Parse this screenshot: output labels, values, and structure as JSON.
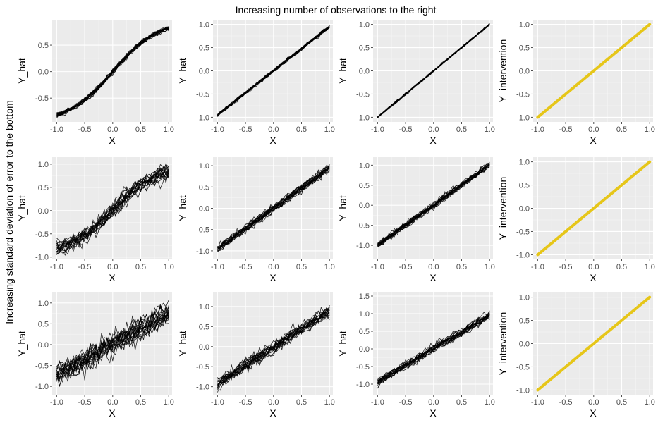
{
  "figure": {
    "top_label": "Increasing number of observations to the right",
    "left_label": "Increasing standard deviation of error to the bottom"
  },
  "colors": {
    "panel_background": "#ebebeb",
    "grid": "#ffffff",
    "simulated_lines": "#000000",
    "intervention_line": "#e6c619"
  },
  "chart_data": [
    {
      "type": "line",
      "row": 1,
      "col": 1,
      "xlabel": "X",
      "ylabel": "Y_hat",
      "xlim": [
        -1.08,
        1.06
      ],
      "ylim": [
        -0.95,
        0.98
      ],
      "xticks": [
        -1.0,
        -0.5,
        0.0,
        0.5,
        1.0
      ],
      "xtick_labels": [
        "-1.0",
        "-0.5",
        "0.0",
        "0.5",
        "1.0"
      ],
      "yticks": [
        -0.5,
        0.0,
        0.5
      ],
      "ytick_labels": [
        "-0.5",
        "0.0",
        "0.5"
      ],
      "series_count": 20,
      "trend": "sigmoid-shaped, from about -0.8 at X=-1 to about 0.8 at X=1",
      "noise": 0.02
    },
    {
      "type": "line",
      "row": 1,
      "col": 2,
      "xlabel": "X",
      "ylabel": "Y_hat",
      "xlim": [
        -1.08,
        1.06
      ],
      "ylim": [
        -1.1,
        1.1
      ],
      "xticks": [
        -1.0,
        -0.5,
        0.0,
        0.5,
        1.0
      ],
      "xtick_labels": [
        "-1.0",
        "-0.5",
        "0.0",
        "0.5",
        "1.0"
      ],
      "yticks": [
        -1.0,
        -0.5,
        0.0,
        0.5,
        1.0
      ],
      "ytick_labels": [
        "-1.0",
        "-0.5",
        "0.0",
        "0.5",
        "1.0"
      ],
      "series_count": 20,
      "trend": "approximately Y = 0.95 X",
      "noise": 0.015
    },
    {
      "type": "line",
      "row": 1,
      "col": 3,
      "xlabel": "X",
      "ylabel": "Y_hat",
      "xlim": [
        -1.08,
        1.06
      ],
      "ylim": [
        -1.1,
        1.1
      ],
      "xticks": [
        -1.0,
        -0.5,
        0.0,
        0.5,
        1.0
      ],
      "xtick_labels": [
        "-1.0",
        "-0.5",
        "0.0",
        "0.5",
        "1.0"
      ],
      "yticks": [
        -1.0,
        -0.5,
        0.0,
        0.5,
        1.0
      ],
      "ytick_labels": [
        "-1.0",
        "-0.5",
        "0.0",
        "0.5",
        "1.0"
      ],
      "series_count": 20,
      "trend": "approximately Y = X",
      "noise": 0.008
    },
    {
      "type": "line",
      "row": 1,
      "col": 4,
      "xlabel": "X",
      "ylabel": "Y_intervention",
      "xlim": [
        -1.08,
        1.06
      ],
      "ylim": [
        -1.1,
        1.1
      ],
      "xticks": [
        -1.0,
        -0.5,
        0.0,
        0.5,
        1.0
      ],
      "xtick_labels": [
        "-1.0",
        "-0.5",
        "0.0",
        "0.5",
        "1.0"
      ],
      "yticks": [
        -1.0,
        -0.5,
        0.0,
        0.5,
        1.0
      ],
      "ytick_labels": [
        "-1.0",
        "-0.5",
        "0.0",
        "0.5",
        "1.0"
      ],
      "x": [
        -1.0,
        1.0
      ],
      "y": [
        -1.0,
        1.0
      ]
    },
    {
      "type": "line",
      "row": 2,
      "col": 1,
      "xlabel": "X",
      "ylabel": "Y_hat",
      "xlim": [
        -1.08,
        1.06
      ],
      "ylim": [
        -1.05,
        1.15
      ],
      "xticks": [
        -1.0,
        -0.5,
        0.0,
        0.5,
        1.0
      ],
      "xtick_labels": [
        "-1.0",
        "-0.5",
        "0.0",
        "0.5",
        "1.0"
      ],
      "yticks": [
        -1.0,
        -0.5,
        0.0,
        0.5,
        1.0
      ],
      "ytick_labels": [
        "-1.0",
        "-0.5",
        "0.0",
        "0.5",
        "1.0"
      ],
      "series_count": 20,
      "trend": "approximately Y = 0.8 X with a sigmoid bend",
      "noise": 0.07
    },
    {
      "type": "line",
      "row": 2,
      "col": 2,
      "xlabel": "X",
      "ylabel": "Y_hat",
      "xlim": [
        -1.08,
        1.06
      ],
      "ylim": [
        -1.2,
        1.2
      ],
      "xticks": [
        -1.0,
        -0.5,
        0.0,
        0.5,
        1.0
      ],
      "xtick_labels": [
        "-1.0",
        "-0.5",
        "0.0",
        "0.5",
        "1.0"
      ],
      "yticks": [
        -1.0,
        -0.5,
        0.0,
        0.5,
        1.0
      ],
      "ytick_labels": [
        "-1.0",
        "-0.5",
        "0.0",
        "0.5",
        "1.0"
      ],
      "series_count": 20,
      "trend": "approximately Y = 0.95 X",
      "noise": 0.045
    },
    {
      "type": "line",
      "row": 2,
      "col": 3,
      "xlabel": "X",
      "ylabel": "Y_hat",
      "xlim": [
        -1.08,
        1.06
      ],
      "ylim": [
        -1.35,
        1.2
      ],
      "xticks": [
        -1.0,
        -0.5,
        0.0,
        0.5,
        1.0
      ],
      "xtick_labels": [
        "-1.0",
        "-0.5",
        "0.0",
        "0.5",
        "1.0"
      ],
      "yticks": [
        -1.0,
        -0.5,
        0.0,
        0.5,
        1.0
      ],
      "ytick_labels": [
        "-1.0",
        "-0.5",
        "0.0",
        "0.5",
        "1.0"
      ],
      "series_count": 20,
      "trend": "approximately Y = X",
      "noise": 0.035
    },
    {
      "type": "line",
      "row": 2,
      "col": 4,
      "xlabel": "X",
      "ylabel": "Y_intervention",
      "xlim": [
        -1.08,
        1.06
      ],
      "ylim": [
        -1.1,
        1.1
      ],
      "xticks": [
        -1.0,
        -0.5,
        0.0,
        0.5,
        1.0
      ],
      "xtick_labels": [
        "-1.0",
        "-0.5",
        "0.0",
        "0.5",
        "1.0"
      ],
      "yticks": [
        -1.0,
        -0.5,
        0.0,
        0.5,
        1.0
      ],
      "ytick_labels": [
        "-1.0",
        "-0.5",
        "0.0",
        "0.5",
        "1.0"
      ],
      "x": [
        -1.0,
        1.0
      ],
      "y": [
        -1.0,
        1.0
      ]
    },
    {
      "type": "line",
      "row": 3,
      "col": 1,
      "xlabel": "X",
      "ylabel": "Y_hat",
      "xlim": [
        -1.08,
        1.06
      ],
      "ylim": [
        -1.2,
        1.25
      ],
      "xticks": [
        -1.0,
        -0.5,
        0.0,
        0.5,
        1.0
      ],
      "xtick_labels": [
        "-1.0",
        "-0.5",
        "0.0",
        "0.5",
        "1.0"
      ],
      "yticks": [
        -1.0,
        -0.5,
        0.0,
        0.5,
        1.0
      ],
      "ytick_labels": [
        "-1.0",
        "-0.5",
        "0.0",
        "0.5",
        "1.0"
      ],
      "series_count": 20,
      "trend": "approximately Y = 0.75 X",
      "noise": 0.13
    },
    {
      "type": "line",
      "row": 3,
      "col": 2,
      "xlabel": "X",
      "ylabel": "Y_hat",
      "xlim": [
        -1.08,
        1.06
      ],
      "ylim": [
        -1.2,
        1.35
      ],
      "xticks": [
        -1.0,
        -0.5,
        0.0,
        0.5,
        1.0
      ],
      "xtick_labels": [
        "-1.0",
        "-0.5",
        "0.0",
        "0.5",
        "1.0"
      ],
      "yticks": [
        -1.0,
        -0.5,
        0.0,
        0.5,
        1.0
      ],
      "ytick_labels": [
        "-1.0",
        "-0.5",
        "0.0",
        "0.5",
        "1.0"
      ],
      "series_count": 20,
      "trend": "approximately Y = 0.9 X",
      "noise": 0.07
    },
    {
      "type": "line",
      "row": 3,
      "col": 3,
      "xlabel": "X",
      "ylabel": "Y_hat",
      "xlim": [
        -1.08,
        1.06
      ],
      "ylim": [
        -1.3,
        1.6
      ],
      "xticks": [
        -1.0,
        -0.5,
        0.0,
        0.5,
        1.0
      ],
      "xtick_labels": [
        "-1.0",
        "-0.5",
        "0.0",
        "0.5",
        "1.0"
      ],
      "yticks": [
        -1.0,
        -0.5,
        0.0,
        0.5,
        1.0,
        1.5
      ],
      "ytick_labels": [
        "-1.0",
        "-0.5",
        "0.0",
        "0.5",
        "1.0",
        "1.5"
      ],
      "series_count": 20,
      "trend": "approximately Y = 0.95 X",
      "noise": 0.055
    },
    {
      "type": "line",
      "row": 3,
      "col": 4,
      "xlabel": "X",
      "ylabel": "Y_intervention",
      "xlim": [
        -1.08,
        1.06
      ],
      "ylim": [
        -1.1,
        1.1
      ],
      "xticks": [
        -1.0,
        -0.5,
        0.0,
        0.5,
        1.0
      ],
      "xtick_labels": [
        "-1.0",
        "-0.5",
        "0.0",
        "0.5",
        "1.0"
      ],
      "yticks": [
        -1.0,
        -0.5,
        0.0,
        0.5,
        1.0
      ],
      "ytick_labels": [
        "-1.0",
        "-0.5",
        "0.0",
        "0.5",
        "1.0"
      ],
      "x": [
        -1.0,
        1.0
      ],
      "y": [
        -1.0,
        1.0
      ]
    }
  ]
}
